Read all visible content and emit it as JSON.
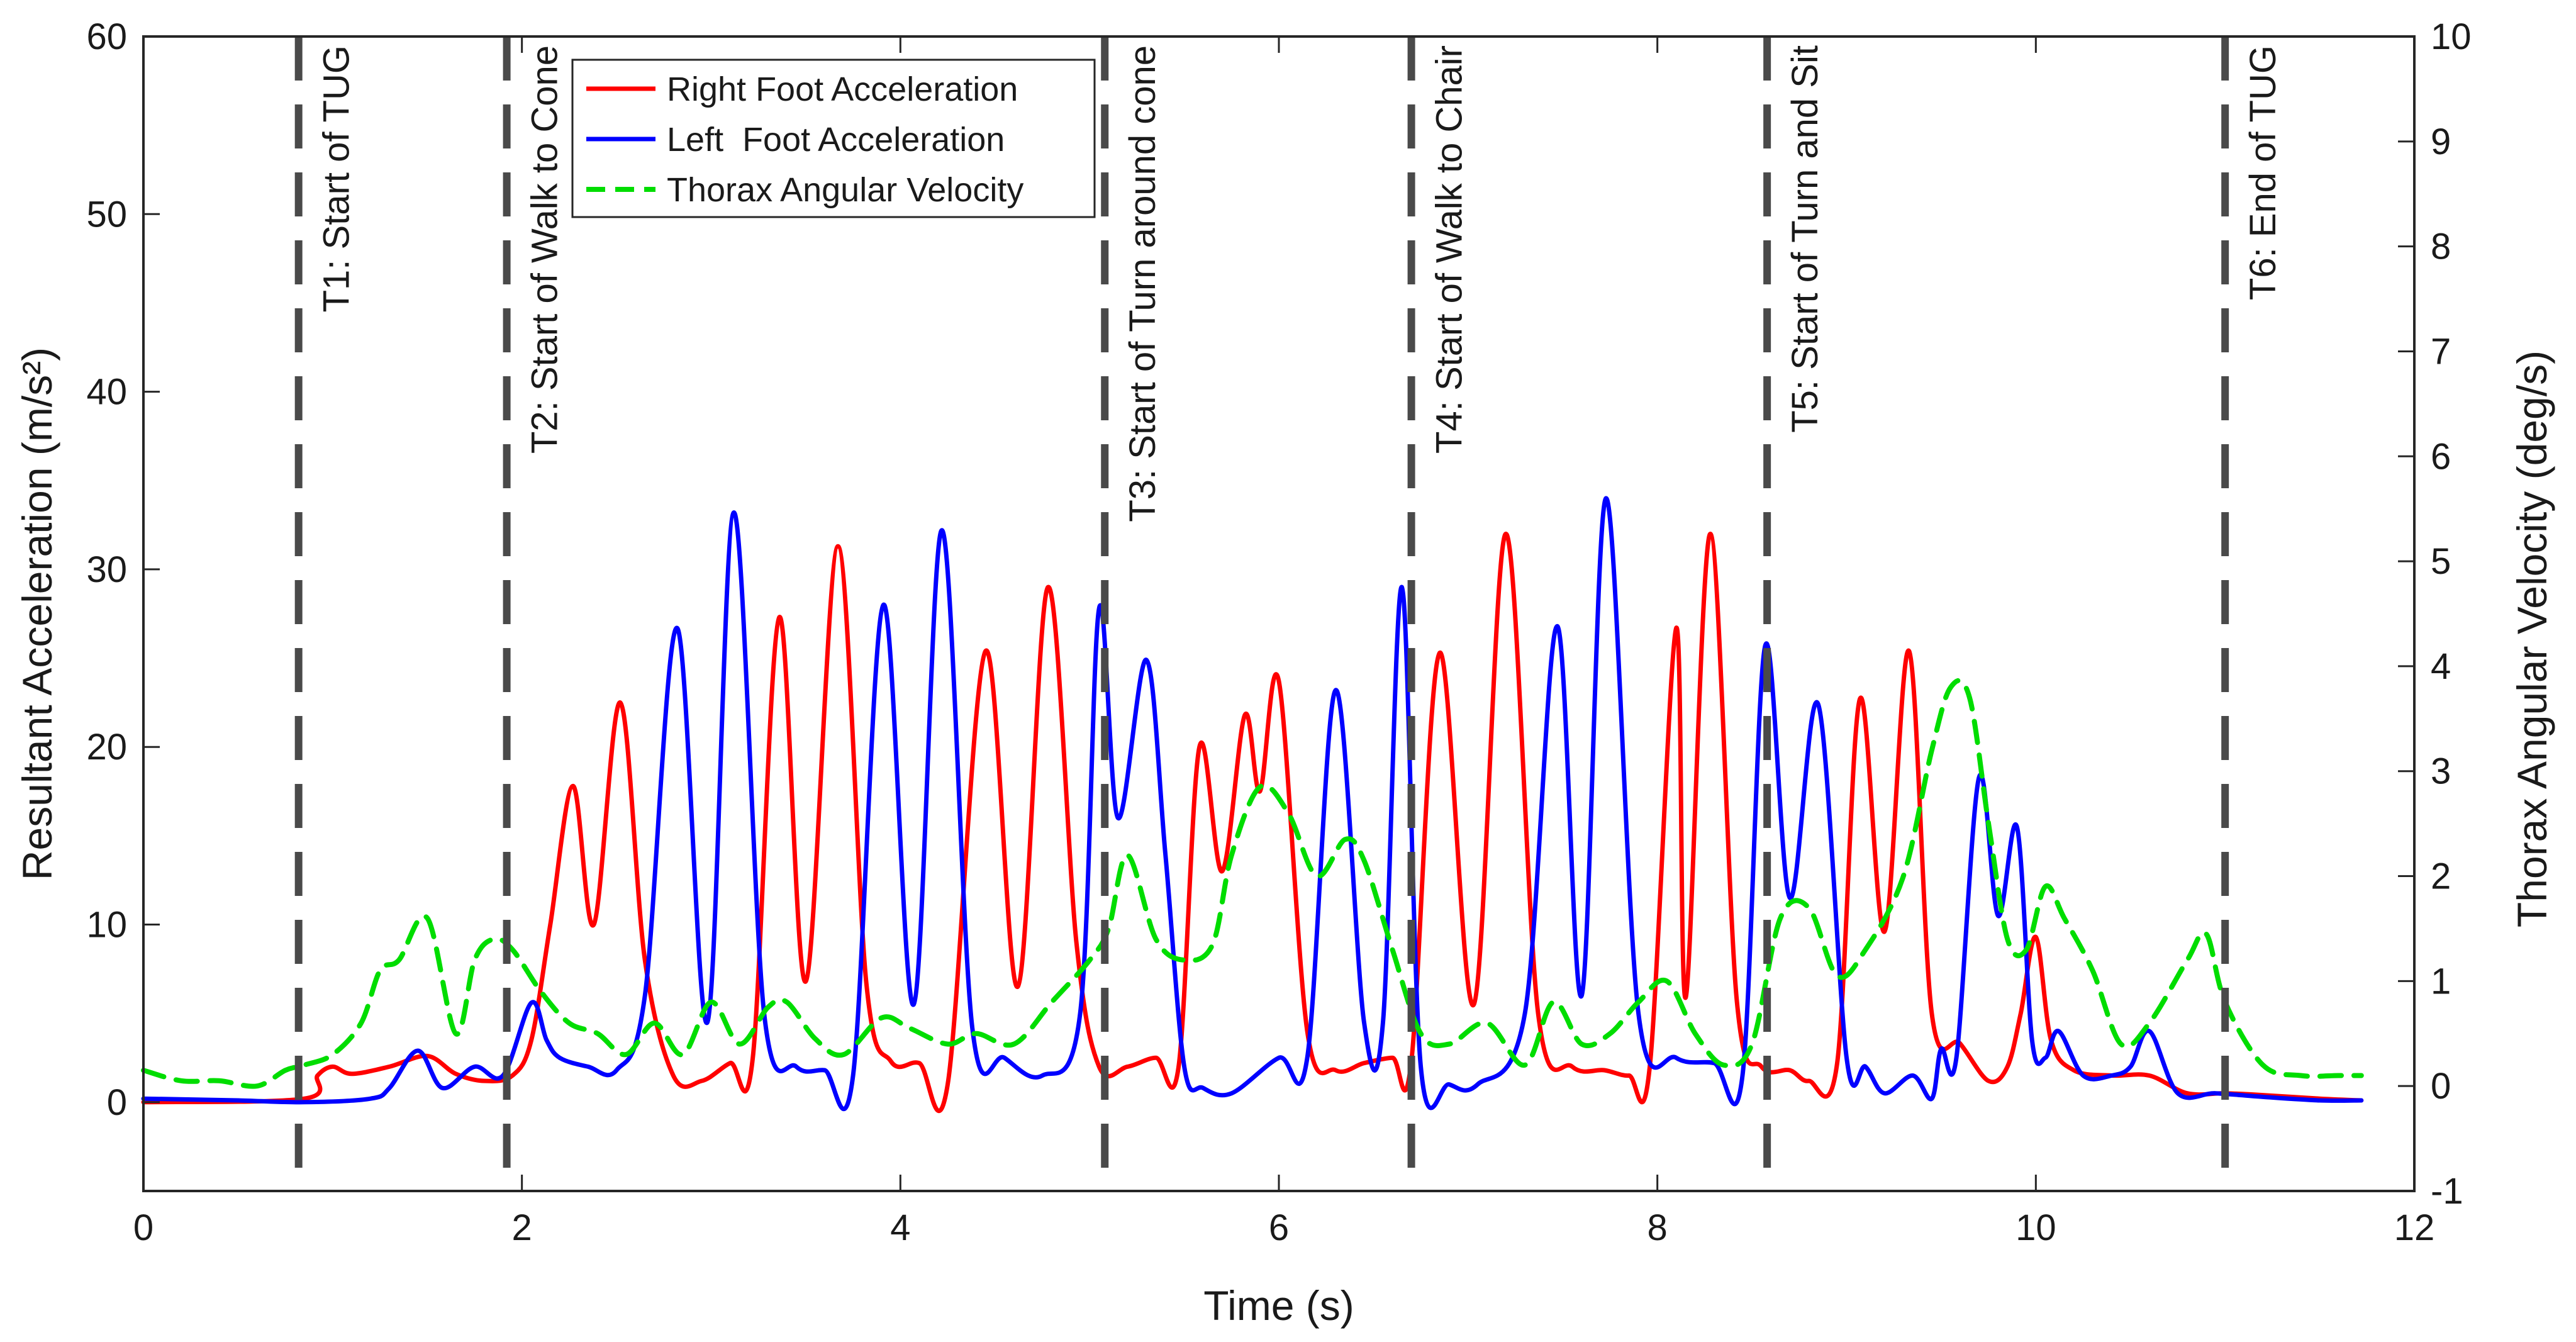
{
  "chart_data": {
    "type": "line",
    "title": "",
    "xlabel": "Time (s)",
    "ylabel": "Resultant Acceleration (m/s²)",
    "y2label": "Thorax Angular Velocity (deg/s)",
    "xlim": [
      0,
      12
    ],
    "ylim": [
      -5,
      60
    ],
    "y2lim": [
      -1,
      10
    ],
    "xticks": [
      0,
      2,
      4,
      6,
      8,
      10,
      12
    ],
    "yticks": [
      0,
      10,
      20,
      30,
      40,
      50,
      60
    ],
    "y2ticks": [
      -1,
      0,
      1,
      2,
      3,
      4,
      5,
      6,
      7,
      8,
      9,
      10
    ],
    "grid": false,
    "legend_position": "top-center",
    "series": [
      {
        "name": "Right Foot Acceleration",
        "color": "#ff0000",
        "style": "solid",
        "axis": "left",
        "x": [
          0,
          0.85,
          0.92,
          1.0,
          1.1,
          1.3,
          1.5,
          1.65,
          1.8,
          1.95,
          2.05,
          2.15,
          2.27,
          2.38,
          2.52,
          2.65,
          2.8,
          2.95,
          3.1,
          3.22,
          3.36,
          3.5,
          3.67,
          3.82,
          3.95,
          4.1,
          4.25,
          4.45,
          4.62,
          4.78,
          4.93,
          5.05,
          5.2,
          5.35,
          5.47,
          5.58,
          5.7,
          5.82,
          5.9,
          6.0,
          6.15,
          6.3,
          6.45,
          6.6,
          6.7,
          6.85,
          7.03,
          7.2,
          7.37,
          7.55,
          7.72,
          7.85,
          7.96,
          8.1,
          8.15,
          8.28,
          8.42,
          8.55,
          8.7,
          8.8,
          8.95,
          9.07,
          9.2,
          9.33,
          9.45,
          9.6,
          9.75,
          9.85,
          9.92,
          10.0,
          10.08,
          10.2,
          10.4,
          10.6,
          10.8,
          11.0,
          11.2,
          11.5,
          11.72
        ],
        "y": [
          0,
          0.2,
          1.5,
          2.0,
          1.6,
          2.0,
          2.6,
          1.6,
          1.2,
          1.5,
          3.5,
          10.0,
          17.8,
          10.0,
          22.5,
          8.0,
          1.5,
          1.2,
          2.2,
          2.5,
          27.3,
          6.8,
          31.3,
          6.7,
          2.3,
          2.2,
          1.0,
          25.4,
          6.5,
          29.0,
          9.0,
          2.0,
          2.0,
          2.5,
          2.0,
          20.0,
          13.0,
          21.8,
          17.5,
          23.7,
          4.0,
          1.8,
          2.2,
          2.5,
          2.3,
          25.3,
          5.5,
          32.0,
          5.0,
          2.0,
          1.8,
          1.5,
          2.0,
          26.7,
          5.9,
          32.0,
          5.7,
          2.0,
          1.8,
          1.2,
          2.2,
          22.7,
          9.6,
          25.4,
          5.0,
          3.3,
          1.2,
          2.0,
          5.0,
          9.3,
          3.5,
          1.8,
          1.5,
          1.5,
          0.5,
          0.5,
          0.4,
          0.2,
          0.1
        ]
      },
      {
        "name": "Left  Foot Acceleration",
        "color": "#0000ff",
        "style": "solid",
        "axis": "left",
        "x": [
          0,
          0.5,
          0.85,
          1.2,
          1.3,
          1.45,
          1.58,
          1.75,
          1.9,
          2.05,
          2.13,
          2.2,
          2.35,
          2.5,
          2.65,
          2.82,
          2.98,
          3.12,
          3.28,
          3.45,
          3.6,
          3.75,
          3.91,
          4.07,
          4.22,
          4.38,
          4.55,
          4.75,
          4.95,
          5.05,
          5.15,
          5.3,
          5.4,
          5.5,
          5.6,
          5.75,
          6.0,
          6.15,
          6.3,
          6.45,
          6.55,
          6.65,
          6.75,
          6.9,
          7.05,
          7.3,
          7.47,
          7.6,
          7.73,
          7.9,
          8.1,
          8.3,
          8.45,
          8.57,
          8.7,
          8.85,
          9.0,
          9.1,
          9.2,
          9.35,
          9.45,
          9.5,
          9.58,
          9.7,
          9.8,
          9.9,
          9.98,
          10.05,
          10.12,
          10.25,
          10.4,
          10.5,
          10.6,
          10.75,
          10.95,
          11.2,
          11.5,
          11.72
        ],
        "y": [
          0.2,
          0.1,
          0,
          0.2,
          0.8,
          2.9,
          0.8,
          2.0,
          1.5,
          5.6,
          3.5,
          2.5,
          2.0,
          1.8,
          6.0,
          26.7,
          4.5,
          33.2,
          5.0,
          2.0,
          1.8,
          1.5,
          28.0,
          5.5,
          32.2,
          4.2,
          2.5,
          1.5,
          5.0,
          27.8,
          16.0,
          24.9,
          14.0,
          2.0,
          0.8,
          0.5,
          2.5,
          2.5,
          23.2,
          4.5,
          4.5,
          29.0,
          2.0,
          1.0,
          1.0,
          5.0,
          26.8,
          6.0,
          34.0,
          5.0,
          2.5,
          2.2,
          1.5,
          25.7,
          11.5,
          22.4,
          2.5,
          2.0,
          0.5,
          1.5,
          0.2,
          3.0,
          2.5,
          18.3,
          10.5,
          15.5,
          3.5,
          2.5,
          4.0,
          1.5,
          1.5,
          2.0,
          4.0,
          0.5,
          0.5,
          0.3,
          0.1,
          0.1
        ]
      },
      {
        "name": "Thorax Angular Velocity",
        "color": "#00dd00",
        "style": "dashed",
        "axis": "right",
        "x": [
          0,
          0.2,
          0.4,
          0.6,
          0.75,
          0.85,
          1.0,
          1.15,
          1.25,
          1.35,
          1.5,
          1.65,
          1.75,
          1.85,
          1.95,
          2.1,
          2.25,
          2.4,
          2.55,
          2.7,
          2.85,
          3.0,
          3.15,
          3.3,
          3.4,
          3.55,
          3.7,
          3.9,
          4.05,
          4.25,
          4.4,
          4.6,
          4.8,
          5.0,
          5.1,
          5.2,
          5.35,
          5.5,
          5.65,
          5.75,
          5.9,
          6.05,
          6.2,
          6.35,
          6.45,
          6.6,
          6.75,
          6.9,
          7.1,
          7.3,
          7.45,
          7.6,
          7.75,
          7.9,
          8.05,
          8.2,
          8.35,
          8.5,
          8.65,
          8.8,
          8.95,
          9.1,
          9.3,
          9.45,
          9.55,
          9.65,
          9.75,
          9.85,
          9.95,
          10.05,
          10.15,
          10.3,
          10.45,
          10.6,
          10.8,
          10.9,
          11.0,
          11.2,
          11.4,
          11.6,
          11.72
        ],
        "y": [
          0.15,
          0.05,
          0.05,
          0.0,
          0.15,
          0.2,
          0.3,
          0.6,
          1.1,
          1.2,
          1.6,
          0.5,
          1.2,
          1.4,
          1.3,
          0.9,
          0.6,
          0.5,
          0.3,
          0.6,
          0.3,
          0.8,
          0.4,
          0.75,
          0.8,
          0.45,
          0.3,
          0.65,
          0.55,
          0.4,
          0.5,
          0.4,
          0.8,
          1.2,
          1.5,
          2.2,
          1.4,
          1.2,
          1.35,
          2.2,
          2.85,
          2.6,
          2.0,
          2.35,
          2.15,
          1.3,
          0.5,
          0.4,
          0.6,
          0.2,
          0.8,
          0.4,
          0.5,
          0.8,
          1.0,
          0.5,
          0.2,
          0.4,
          1.6,
          1.7,
          1.05,
          1.3,
          2.0,
          3.2,
          3.8,
          3.7,
          2.5,
          1.4,
          1.3,
          1.9,
          1.6,
          1.1,
          0.4,
          0.6,
          1.2,
          1.45,
          0.8,
          0.2,
          0.1,
          0.1,
          0.1
        ]
      }
    ],
    "annotations": [
      {
        "label": "T1: Start of TUG",
        "x": 0.82
      },
      {
        "label": "T2: Start of Walk to Cone",
        "x": 1.92
      },
      {
        "label": "T3: Start of Turn around cone",
        "x": 5.08
      },
      {
        "label": "T4: Start of Walk to Chair",
        "x": 6.7
      },
      {
        "label": "T5: Start of Turn and Sit",
        "x": 8.58
      },
      {
        "label": "T6: End of TUG",
        "x": 11.0
      }
    ]
  }
}
